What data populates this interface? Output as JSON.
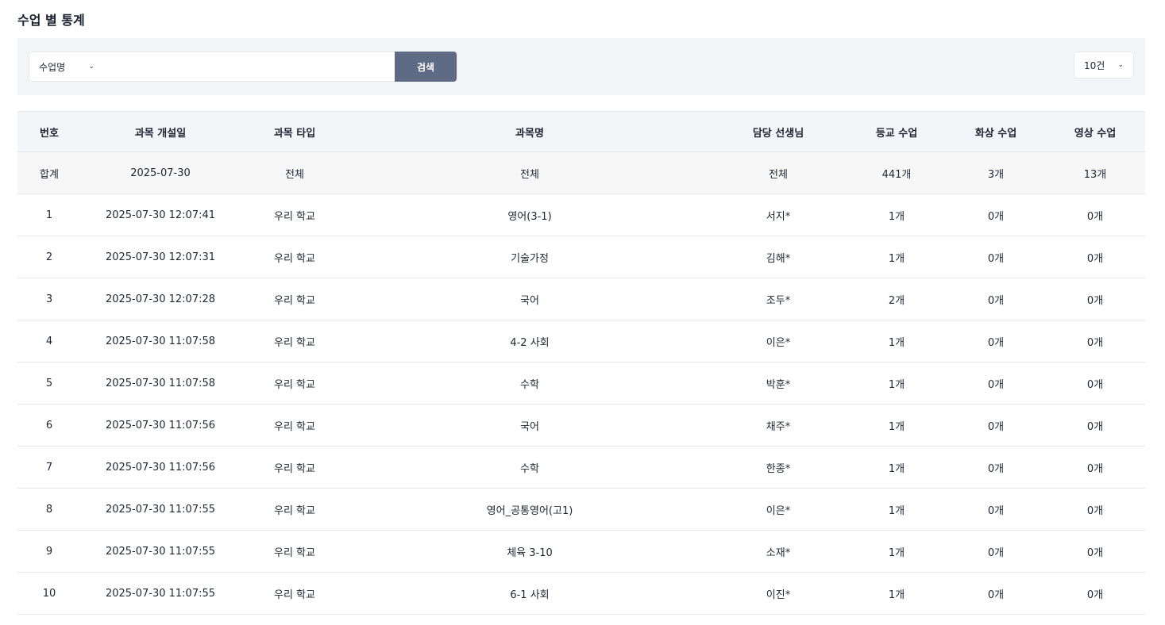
{
  "title": "수업 별 통계",
  "filter": {
    "search_type": "수업명",
    "search_value": "",
    "search_button": "검색",
    "page_size": "10건"
  },
  "table": {
    "headers": [
      "번호",
      "과목 개설일",
      "과목 타입",
      "과목명",
      "담당 선생님",
      "등교 수업",
      "화상 수업",
      "영상 수업"
    ],
    "total": [
      "합계",
      "2025-07-30",
      "전체",
      "전체",
      "전체",
      "441개",
      "3개",
      "13개"
    ],
    "rows": [
      [
        "1",
        "2025-07-30 12:07:41",
        "우리 학교",
        "영어(3-1)",
        "서지*",
        "1개",
        "0개",
        "0개"
      ],
      [
        "2",
        "2025-07-30 12:07:31",
        "우리 학교",
        "기술가정",
        "김해*",
        "1개",
        "0개",
        "0개"
      ],
      [
        "3",
        "2025-07-30 12:07:28",
        "우리 학교",
        "국어",
        "조두*",
        "2개",
        "0개",
        "0개"
      ],
      [
        "4",
        "2025-07-30 11:07:58",
        "우리 학교",
        "4-2 사회",
        "이은*",
        "1개",
        "0개",
        "0개"
      ],
      [
        "5",
        "2025-07-30 11:07:58",
        "우리 학교",
        "수학",
        "박훈*",
        "1개",
        "0개",
        "0개"
      ],
      [
        "6",
        "2025-07-30 11:07:56",
        "우리 학교",
        "국어",
        "채주*",
        "1개",
        "0개",
        "0개"
      ],
      [
        "7",
        "2025-07-30 11:07:56",
        "우리 학교",
        "수학",
        "한종*",
        "1개",
        "0개",
        "0개"
      ],
      [
        "8",
        "2025-07-30 11:07:55",
        "우리 학교",
        "영어_공통영어(고1)",
        "이은*",
        "1개",
        "0개",
        "0개"
      ],
      [
        "9",
        "2025-07-30 11:07:55",
        "우리 학교",
        "체육 3-10",
        "소재*",
        "1개",
        "0개",
        "0개"
      ],
      [
        "10",
        "2025-07-30 11:07:55",
        "우리 학교",
        "6-1 사회",
        "이진*",
        "1개",
        "0개",
        "0개"
      ]
    ]
  },
  "colors": {
    "button": "#5f6a85",
    "filter_bg": "#f4f5f9"
  }
}
